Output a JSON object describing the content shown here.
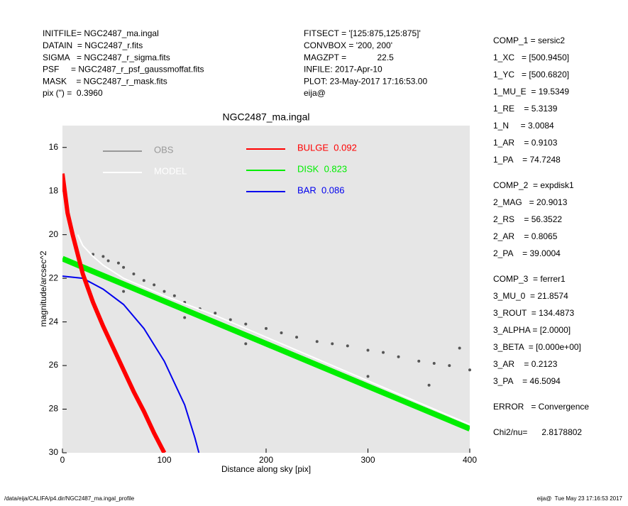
{
  "header": {
    "left": [
      "INITFILE= NGC2487_ma.ingal",
      "DATAIN  = NGC2487_r.fits",
      "SIGMA   = NGC2487_r_sigma.fits",
      "PSF     = NGC2487_r_psf_gaussmoffat.fits",
      "MASK    = NGC2487_r_mask.fits",
      "pix (\") =  0.3960"
    ],
    "middle": [
      "FITSECT = '[125:875,125:875]'",
      "CONVBOX = '200, 200'",
      "MAGZPT =             22.5",
      "INFILE: 2017-Apr-10",
      "PLOT: 23-May-2017 17:16:53.00",
      "eija@"
    ]
  },
  "params": [
    [
      "COMP_1 = sersic2",
      "1_XC   = [500.9450]",
      "1_YC   = [500.6820]",
      "1_MU_E  = 19.5349",
      "1_RE    = 5.3139",
      "1_N     = 3.0084",
      "1_AR    = 0.9103",
      "1_PA    = 74.7248"
    ],
    [
      "COMP_2  = expdisk1",
      "2_MAG   = 20.9013",
      "2_RS    = 56.3522",
      "2_AR    = 0.8065",
      "2_PA    = 39.0004"
    ],
    [
      "COMP_3  = ferrer1",
      "3_MU_0  = 21.8574",
      "3_ROUT  = 134.4873",
      "3_ALPHA = [2.0000]",
      "3_BETA  = [0.000e+00]",
      "3_AR    = 0.2123",
      "3_PA    = 46.5094"
    ],
    [
      "ERROR   = Convergence"
    ],
    [
      "Chi2/nu=      2.8178802"
    ]
  ],
  "footer": {
    "left": "/data/eija/CALIFA/p4.dir/NGC2487_ma.ingal_profile",
    "right": "eija@  Tue May 23 17:16:53 2017"
  },
  "chart_data": {
    "type": "line",
    "title": "NGC2487_ma.ingal",
    "x_label": "Distance along sky [pix]",
    "y_label": "magnitude/arcsec^2",
    "xlim": [
      0,
      400
    ],
    "ylim": [
      30,
      15
    ],
    "xticks": [
      0,
      100,
      200,
      300,
      400
    ],
    "yticks": [
      16,
      18,
      20,
      22,
      24,
      26,
      28,
      30
    ],
    "series": [
      {
        "name": "OBS",
        "type": "scatter",
        "color": "#555555",
        "legend_color": "#999999",
        "x": [
          30,
          40,
          45,
          55,
          60,
          70,
          80,
          90,
          100,
          110,
          120,
          135,
          150,
          165,
          180,
          200,
          215,
          230,
          250,
          265,
          280,
          300,
          315,
          330,
          350,
          365,
          380,
          400,
          60,
          120,
          180,
          240,
          300,
          360,
          390
        ],
        "values": [
          20.9,
          21.0,
          21.2,
          21.3,
          21.5,
          21.8,
          22.1,
          22.3,
          22.6,
          22.8,
          23.1,
          23.4,
          23.6,
          23.9,
          24.1,
          24.3,
          24.5,
          24.7,
          24.9,
          25.0,
          25.1,
          25.3,
          25.4,
          25.6,
          25.8,
          25.9,
          26.0,
          26.2,
          22.6,
          23.8,
          25.0,
          25.8,
          26.5,
          26.9,
          25.2
        ]
      },
      {
        "name": "MODEL",
        "type": "line",
        "color": "#ffffff",
        "x": [
          15,
          20,
          30,
          40,
          60,
          80,
          100,
          150,
          200,
          250,
          300,
          350,
          400
        ],
        "values": [
          20.0,
          20.5,
          21.0,
          21.4,
          22.0,
          22.4,
          22.8,
          23.7,
          24.7,
          25.7,
          26.7,
          27.7,
          28.7
        ]
      },
      {
        "name": "BULGE  0.092",
        "type": "line",
        "color": "#ff0000",
        "width": 6,
        "x": [
          0,
          5,
          10,
          20,
          30,
          40,
          50,
          60,
          70,
          80,
          90,
          100
        ],
        "values": [
          17.2,
          19.0,
          20.0,
          21.8,
          23.1,
          24.2,
          25.2,
          26.2,
          27.2,
          28.1,
          29.1,
          30
        ]
      },
      {
        "name": "DISK  0.823",
        "type": "line",
        "color": "#00ee00",
        "width": 8,
        "x": [
          0,
          100,
          200,
          300,
          400
        ],
        "values": [
          21.1,
          23.05,
          25.0,
          26.95,
          28.9
        ]
      },
      {
        "name": "BAR  0.086",
        "type": "line",
        "color": "#0000ee",
        "width": 2,
        "x": [
          0,
          20,
          40,
          60,
          80,
          100,
          120,
          130,
          134
        ],
        "values": [
          21.9,
          22.0,
          22.5,
          23.2,
          24.3,
          25.8,
          27.8,
          29.3,
          30
        ]
      }
    ]
  }
}
